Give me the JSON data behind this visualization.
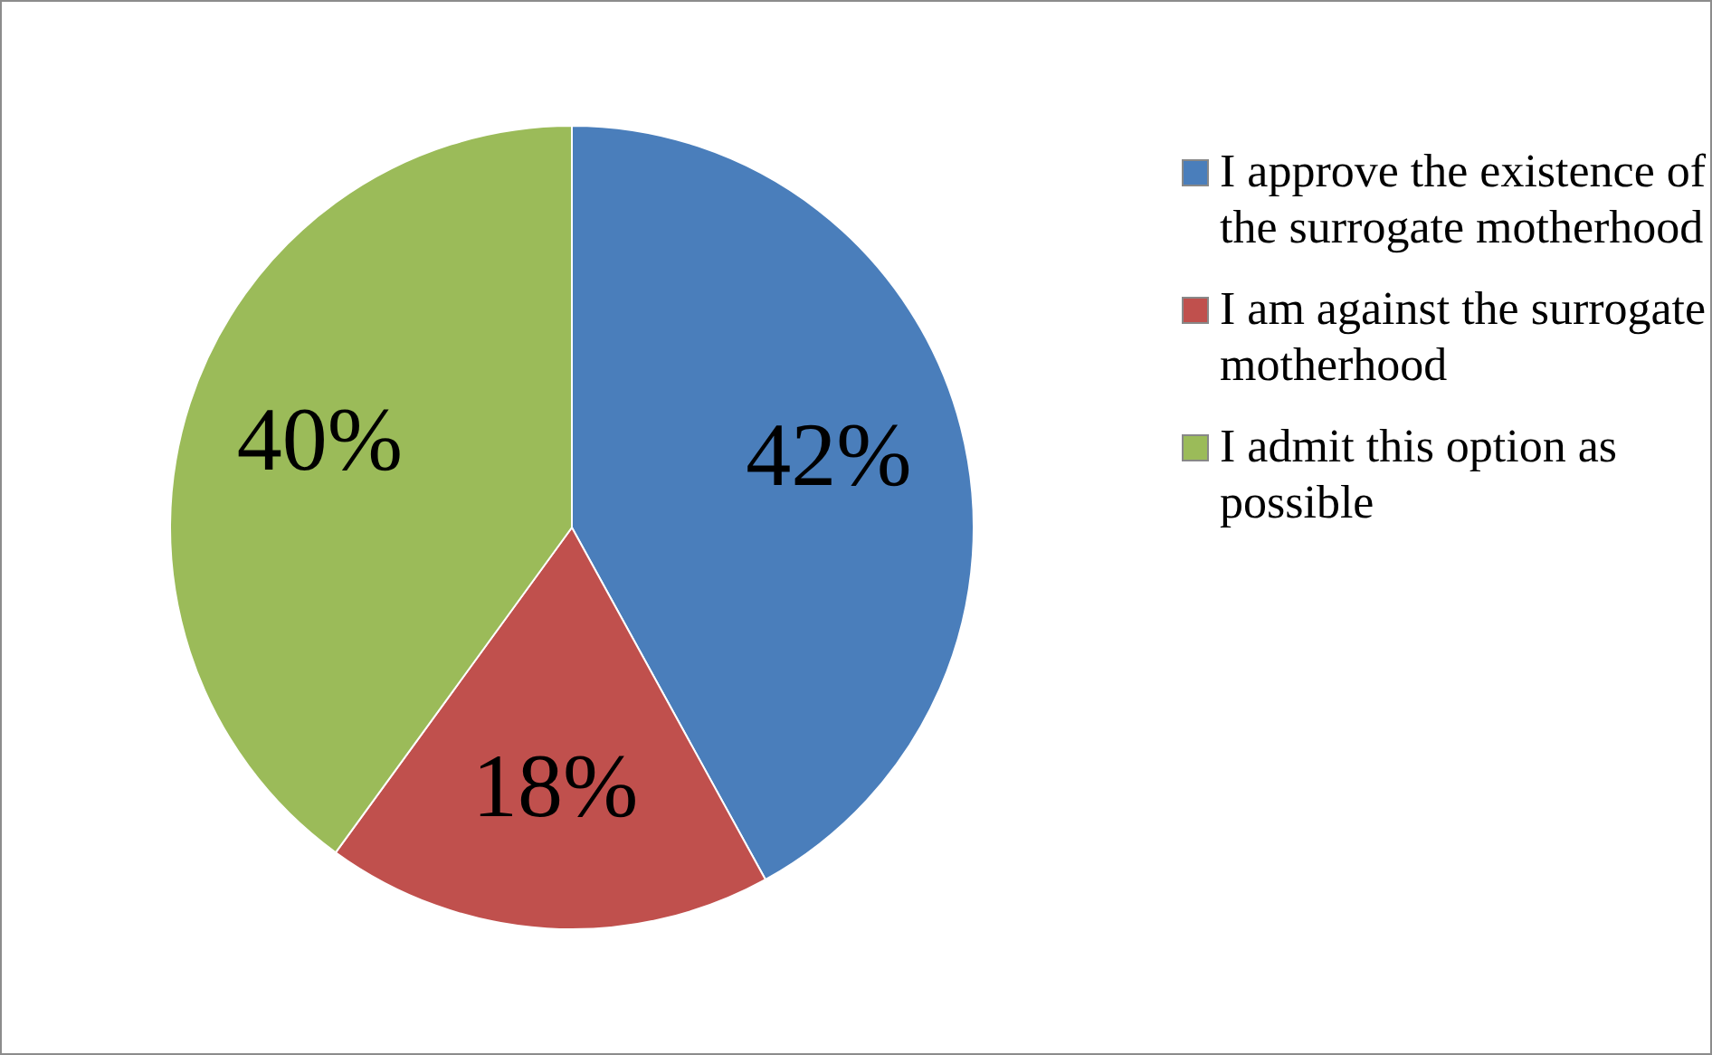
{
  "chart_data": {
    "type": "pie",
    "categories": [
      "I approve the existence of the surrogate motherhood",
      "I am against the surrogate motherhood",
      "I admit this option as possible"
    ],
    "values": [
      42,
      18,
      40
    ],
    "colors": [
      "#4a7ebb",
      "#c0504d",
      "#9bbb59"
    ],
    "value_labels": [
      "42%",
      "18%",
      "40%"
    ],
    "legend": "right"
  }
}
